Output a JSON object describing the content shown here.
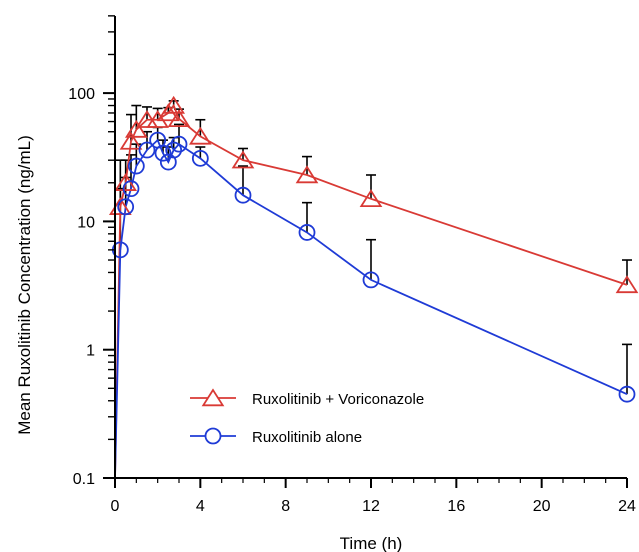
{
  "chart_data": {
    "type": "line",
    "title": "",
    "xlabel": "Time (h)",
    "ylabel": "Mean Ruxolitinib Concentration (ng/mL)",
    "x_scale": "linear",
    "y_scale": "log",
    "xlim": [
      0,
      24
    ],
    "ylim": [
      0.1,
      400
    ],
    "x_ticks": [
      0,
      4,
      8,
      12,
      16,
      20,
      24
    ],
    "x_tick_labels": [
      "0",
      "4",
      "8",
      "12",
      "16",
      "20",
      "24"
    ],
    "y_ticks": [
      0.1,
      1,
      10,
      100
    ],
    "y_tick_labels": [
      "0.1",
      "1",
      "10",
      "100"
    ],
    "grid": false,
    "legend_position": "bottom-center",
    "series": [
      {
        "name": "Ruxolitinib + Voriconazole",
        "color": "#d93a35",
        "marker": "triangle",
        "x": [
          0,
          0.25,
          0.5,
          0.75,
          1,
          1.5,
          2,
          2.5,
          2.75,
          3,
          4,
          6,
          9,
          12,
          24
        ],
        "y": [
          0.1,
          13,
          20,
          42,
          52,
          62,
          62,
          70,
          80,
          63,
          46,
          30,
          23,
          15,
          3.2
        ],
        "error_upper": [
          0.1,
          30,
          30,
          68,
          80,
          78,
          76,
          77,
          87,
          75,
          62,
          37,
          32,
          23,
          5
        ]
      },
      {
        "name": "Ruxolitinib alone",
        "color": "#1f3bd6",
        "marker": "circle",
        "x": [
          0,
          0.25,
          0.5,
          0.75,
          1,
          1.5,
          2,
          2.25,
          2.5,
          2.75,
          3,
          4,
          6,
          9,
          12,
          24
        ],
        "y": [
          0.1,
          6,
          13,
          18,
          27,
          36,
          43,
          34,
          29,
          36,
          40,
          31,
          16,
          8.2,
          3.5,
          0.45
        ],
        "error_upper": [
          0.1,
          18,
          22,
          33,
          40,
          50,
          54,
          43,
          38,
          45,
          57,
          38,
          27,
          14,
          7.2,
          1.1
        ]
      }
    ]
  }
}
